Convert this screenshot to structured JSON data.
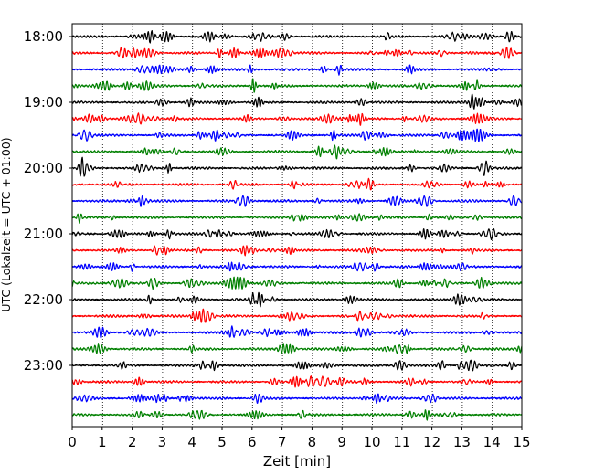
{
  "chart_data": {
    "type": "line",
    "title": "",
    "xlabel": "Zeit  [min]",
    "ylabel": "UTC (Lokalzeit = UTC + 01:00)",
    "xlim": [
      0,
      15
    ],
    "x_ticks": [
      0,
      1,
      2,
      3,
      4,
      5,
      6,
      7,
      8,
      9,
      10,
      11,
      12,
      13,
      14,
      15
    ],
    "x_tick_labels": [
      "0",
      "1",
      "2",
      "3",
      "4",
      "5",
      "6",
      "7",
      "8",
      "9",
      "10",
      "11",
      "12",
      "13",
      "14",
      "15"
    ],
    "y_tick_labels": [
      "18:00",
      "19:00",
      "20:00",
      "21:00",
      "22:00",
      "23:00"
    ],
    "grid": "vertical dotted",
    "trace_interval_minutes": 15,
    "traces_per_hour": 4,
    "start_time": "18:00",
    "end_time": "23:45",
    "color_cycle": [
      "#000000",
      "#ff0000",
      "#0000ff",
      "#008000"
    ],
    "traces": [
      {
        "start": "18:00",
        "color": "#000000"
      },
      {
        "start": "18:15",
        "color": "#ff0000"
      },
      {
        "start": "18:30",
        "color": "#0000ff"
      },
      {
        "start": "18:45",
        "color": "#008000"
      },
      {
        "start": "19:00",
        "color": "#000000"
      },
      {
        "start": "19:15",
        "color": "#ff0000"
      },
      {
        "start": "19:30",
        "color": "#0000ff"
      },
      {
        "start": "19:45",
        "color": "#008000"
      },
      {
        "start": "20:00",
        "color": "#000000"
      },
      {
        "start": "20:15",
        "color": "#ff0000"
      },
      {
        "start": "20:30",
        "color": "#0000ff"
      },
      {
        "start": "20:45",
        "color": "#008000"
      },
      {
        "start": "21:00",
        "color": "#000000"
      },
      {
        "start": "21:15",
        "color": "#ff0000"
      },
      {
        "start": "21:30",
        "color": "#0000ff"
      },
      {
        "start": "21:45",
        "color": "#008000"
      },
      {
        "start": "22:00",
        "color": "#000000"
      },
      {
        "start": "22:15",
        "color": "#ff0000"
      },
      {
        "start": "22:30",
        "color": "#0000ff"
      },
      {
        "start": "22:45",
        "color": "#008000"
      },
      {
        "start": "23:00",
        "color": "#000000"
      },
      {
        "start": "23:15",
        "color": "#ff0000"
      },
      {
        "start": "23:30",
        "color": "#0000ff"
      },
      {
        "start": "23:45",
        "color": "#008000"
      }
    ]
  }
}
